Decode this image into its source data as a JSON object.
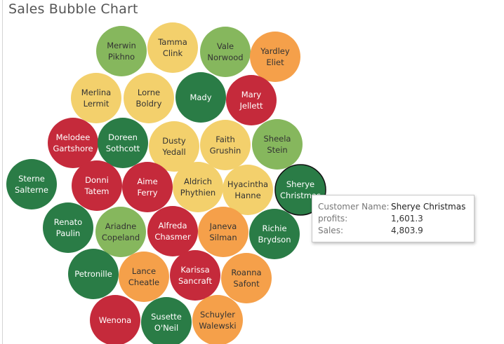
{
  "title": "Sales Bubble Chart",
  "chart_data": {
    "type": "bubble",
    "color_scale": {
      "dark_green": "#2a7c46",
      "green": "#86b75d",
      "yellow": "#f3d06c",
      "orange": "#f5a04a",
      "red": "#c52a3b"
    },
    "bubbles": [
      {
        "name": "Merwin Pikhno",
        "label": [
          "Merwin",
          "Pikhno"
        ],
        "color": "green"
      },
      {
        "name": "Tamma Clink",
        "label": [
          "Tamma",
          "Clink"
        ],
        "color": "yellow"
      },
      {
        "name": "Vale Norwood",
        "label": [
          "Vale",
          "Norwood"
        ],
        "color": "green"
      },
      {
        "name": "Yardley Eliet",
        "label": [
          "Yardley",
          "Eliet"
        ],
        "color": "orange"
      },
      {
        "name": "Merlina Lermit",
        "label": [
          "Merlina",
          "Lermit"
        ],
        "color": "yellow"
      },
      {
        "name": "Lorne Boldry",
        "label": [
          "Lorne",
          "Boldry"
        ],
        "color": "yellow"
      },
      {
        "name": "Mady",
        "label": [
          "Mady"
        ],
        "color": "dark_green"
      },
      {
        "name": "Mary Jellett",
        "label": [
          "Mary",
          "Jellett"
        ],
        "color": "red"
      },
      {
        "name": "Melodee Gartshore",
        "label": [
          "Melodee",
          "Gartshore"
        ],
        "color": "red"
      },
      {
        "name": "Doreen Sothcott",
        "label": [
          "Doreen",
          "Sothcott"
        ],
        "color": "dark_green"
      },
      {
        "name": "Dusty Yedall",
        "label": [
          "Dusty",
          "Yedall"
        ],
        "color": "yellow"
      },
      {
        "name": "Faith Grushin",
        "label": [
          "Faith",
          "Grushin"
        ],
        "color": "yellow"
      },
      {
        "name": "Sheela Stein",
        "label": [
          "Sheela",
          "Stein"
        ],
        "color": "green"
      },
      {
        "name": "Sterne Salterne",
        "label": [
          "Sterne",
          "Salterne"
        ],
        "color": "dark_green"
      },
      {
        "name": "Donni Tatem",
        "label": [
          "Donni",
          "Tatem"
        ],
        "color": "red"
      },
      {
        "name": "Aime Ferry",
        "label": [
          "Aime",
          "Ferry"
        ],
        "color": "red"
      },
      {
        "name": "Aldrich Phythien",
        "label": [
          "Aldrich",
          "Phythien"
        ],
        "color": "yellow"
      },
      {
        "name": "Hyacintha Hanne",
        "label": [
          "Hyacintha",
          "Hanne"
        ],
        "color": "yellow"
      },
      {
        "name": "Sherye Christmas",
        "label": [
          "Sherye",
          "Christmas"
        ],
        "color": "dark_green",
        "highlighted": true
      },
      {
        "name": "Renato Paulin",
        "label": [
          "Renato",
          "Paulin"
        ],
        "color": "dark_green"
      },
      {
        "name": "Ariadne Copeland",
        "label": [
          "Ariadne",
          "Copeland"
        ],
        "color": "green"
      },
      {
        "name": "Alfreda Chasmer",
        "label": [
          "Alfreda",
          "Chasmer"
        ],
        "color": "red"
      },
      {
        "name": "Janeva Silman",
        "label": [
          "Janeva",
          "Silman"
        ],
        "color": "orange"
      },
      {
        "name": "Richie Brydson",
        "label": [
          "Richie",
          "Brydson"
        ],
        "color": "dark_green"
      },
      {
        "name": "Petronille",
        "label": [
          "Petronille"
        ],
        "color": "dark_green"
      },
      {
        "name": "Lance Cheatle",
        "label": [
          "Lance",
          "Cheatle"
        ],
        "color": "orange"
      },
      {
        "name": "Karissa Sancraft",
        "label": [
          "Karissa",
          "Sancraft"
        ],
        "color": "red"
      },
      {
        "name": "Roanna Safont",
        "label": [
          "Roanna",
          "Safont"
        ],
        "color": "orange"
      },
      {
        "name": "Wenona",
        "label": [
          "Wenona"
        ],
        "color": "red"
      },
      {
        "name": "Susette O'Neil",
        "label": [
          "Susette",
          "O'Neil"
        ],
        "color": "dark_green"
      },
      {
        "name": "Schuyler Walewski",
        "label": [
          "Schuyler",
          "Walewski"
        ],
        "color": "orange"
      }
    ]
  },
  "tooltip": {
    "customer_key": "Customer Name:",
    "customer_value": "Sherye Christmas",
    "profits_key": "profits:",
    "profits_value": "1,601.3",
    "sales_key": "Sales:",
    "sales_value": "4,803.9"
  }
}
